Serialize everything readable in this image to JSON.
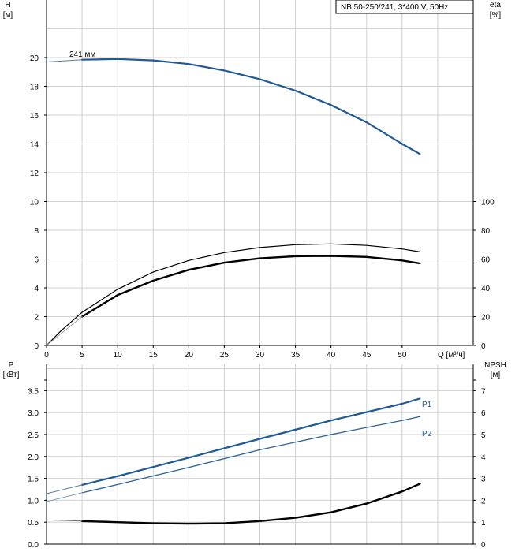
{
  "chart_data": [
    {
      "type": "line",
      "title": "NB 50-250/241, 3*400 V, 50Hz",
      "ylabel": "H",
      "ylabel_unit": "[м]",
      "ylabel_right": "eta",
      "ylabel_right_unit": "[%]",
      "xlabel": "Q [м³/ч]",
      "xlim": [
        0,
        60
      ],
      "ylim": [
        0,
        24
      ],
      "ylim_right": [
        0,
        240
      ],
      "grid": true,
      "x_ticks": [
        "0",
        "5",
        "10",
        "15",
        "20",
        "25",
        "30",
        "35",
        "40",
        "45",
        "50"
      ],
      "y_ticks": [
        "0",
        "2",
        "4",
        "6",
        "8",
        "10",
        "12",
        "14",
        "16",
        "18",
        "20"
      ],
      "y_right_ticks": [
        "0",
        "20",
        "40",
        "60",
        "80",
        "100"
      ],
      "annotations": [
        {
          "text": "241 мм"
        }
      ],
      "series": [
        {
          "axis": "left",
          "style": "head-thin",
          "x": [
            0,
            5
          ],
          "y": [
            19.7,
            19.85
          ]
        },
        {
          "axis": "left",
          "style": "head",
          "x": [
            5,
            10,
            15,
            20,
            25,
            30,
            35,
            40,
            45,
            50,
            52.5
          ],
          "y": [
            19.85,
            19.9,
            19.8,
            19.55,
            19.1,
            18.5,
            17.7,
            16.7,
            15.5,
            14.0,
            13.3
          ]
        },
        {
          "axis": "right",
          "style": "eta-thin",
          "x": [
            0,
            2,
            5,
            10,
            15,
            20,
            25,
            30,
            35,
            40,
            45,
            50,
            52.5
          ],
          "y": [
            0,
            10,
            23,
            39,
            51,
            59,
            64.5,
            68,
            70,
            70.5,
            69.5,
            67,
            65
          ]
        },
        {
          "axis": "right",
          "style": "eta-thick",
          "x": [
            5,
            10,
            15,
            20,
            25,
            30,
            35,
            40,
            45,
            50,
            52.5
          ],
          "y": [
            20,
            35,
            45,
            52.5,
            57.5,
            60.5,
            62,
            62.2,
            61.5,
            59,
            57
          ]
        },
        {
          "axis": "right",
          "style": "eta-faint",
          "x": [
            0,
            5
          ],
          "y": [
            0,
            20
          ]
        }
      ]
    },
    {
      "type": "line",
      "ylabel": "P",
      "ylabel_unit": "[кВт]",
      "ylabel_right": "NPSH",
      "ylabel_right_unit": "[м]",
      "xlim": [
        0,
        60
      ],
      "ylim": [
        0,
        4.1
      ],
      "ylim_right": [
        0,
        8.2
      ],
      "grid": true,
      "y_ticks": [
        "0.0",
        "0.5",
        "1.0",
        "1.5",
        "2.0",
        "2.5",
        "3.0",
        "3.5"
      ],
      "y_right_ticks": [
        "0",
        "1",
        "2",
        "3",
        "4",
        "5",
        "6",
        "7"
      ],
      "series": [
        {
          "name": "P1",
          "axis": "left",
          "style": "p1",
          "x": [
            5,
            10,
            20,
            30,
            40,
            50,
            52.5
          ],
          "y": [
            1.35,
            1.55,
            1.97,
            2.4,
            2.82,
            3.2,
            3.32
          ]
        },
        {
          "name": "",
          "axis": "left",
          "style": "p1-ext",
          "x": [
            0,
            5
          ],
          "y": [
            1.15,
            1.35
          ]
        },
        {
          "name": "P2",
          "axis": "left",
          "style": "p2",
          "x": [
            5,
            10,
            20,
            30,
            40,
            50,
            52.5
          ],
          "y": [
            1.17,
            1.36,
            1.75,
            2.15,
            2.5,
            2.82,
            2.91
          ]
        },
        {
          "name": "",
          "axis": "left",
          "style": "p2-ext",
          "x": [
            0,
            5
          ],
          "y": [
            0.97,
            1.17
          ]
        },
        {
          "name": "",
          "axis": "right",
          "style": "npsh",
          "x": [
            5,
            10,
            15,
            20,
            25,
            30,
            35,
            40,
            45,
            50,
            52.5
          ],
          "y": [
            1.05,
            1.0,
            0.95,
            0.93,
            0.95,
            1.05,
            1.2,
            1.45,
            1.85,
            2.4,
            2.75
          ]
        },
        {
          "name": "",
          "axis": "right",
          "style": "npsh-ext",
          "x": [
            0,
            5
          ],
          "y": [
            1.1,
            1.05
          ]
        }
      ]
    }
  ]
}
